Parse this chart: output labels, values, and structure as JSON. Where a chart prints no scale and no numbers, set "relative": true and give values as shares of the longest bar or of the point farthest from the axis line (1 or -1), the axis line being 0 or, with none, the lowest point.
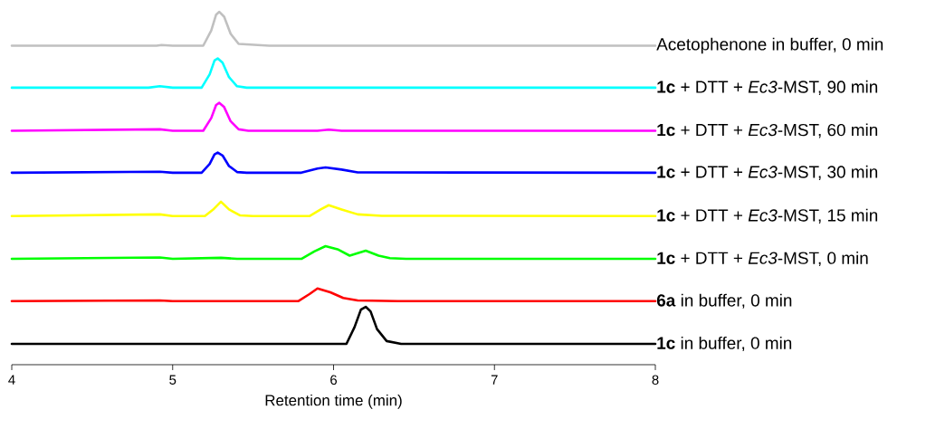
{
  "chart_data": {
    "type": "line",
    "relative": true,
    "xlabel": "Retention time (min)",
    "xlim": [
      4,
      8
    ],
    "xticks": [
      4,
      5,
      6,
      7,
      8
    ],
    "tick_labels": "x",
    "marker": "none",
    "line_style": "solid",
    "series": [
      {
        "name": "Acetophenone in buffer, 0 min",
        "color": "#c0c0c0",
        "x": [
          4.0,
          4.9,
          4.93,
          5.0,
          5.19,
          5.24,
          5.27,
          5.29,
          5.32,
          5.36,
          5.41,
          5.6,
          8.0
        ],
        "values": [
          0.904,
          0.904,
          0.906,
          0.904,
          0.904,
          0.947,
          0.992,
          1.0,
          0.986,
          0.938,
          0.909,
          0.904,
          0.904
        ]
      },
      {
        "name": "**1c** + DTT + *Ec3*-MST, 90 min",
        "color": "#00ffff",
        "x": [
          4.0,
          4.85,
          4.92,
          5.0,
          5.18,
          5.23,
          5.26,
          5.28,
          5.31,
          5.35,
          5.4,
          5.46,
          8.0
        ],
        "values": [
          0.785,
          0.785,
          0.789,
          0.785,
          0.785,
          0.823,
          0.862,
          0.868,
          0.856,
          0.815,
          0.789,
          0.785,
          0.785
        ]
      },
      {
        "name": "**1c** + DTT + *Ec3*-MST, 60 min",
        "color": "#ff00ff",
        "x": [
          4.0,
          4.92,
          5.0,
          5.19,
          5.24,
          5.27,
          5.29,
          5.32,
          5.36,
          5.41,
          5.47,
          5.9,
          5.97,
          6.05,
          8.0
        ],
        "values": [
          0.663,
          0.667,
          0.663,
          0.663,
          0.699,
          0.736,
          0.742,
          0.73,
          0.69,
          0.667,
          0.663,
          0.663,
          0.666,
          0.663,
          0.663
        ]
      },
      {
        "name": "**1c** + DTT + *Ec3*-MST, 30 min",
        "color": "#0000ff",
        "x": [
          4.0,
          4.92,
          5.0,
          5.18,
          5.23,
          5.26,
          5.28,
          5.31,
          5.35,
          5.4,
          5.46,
          5.8,
          5.9,
          5.95,
          6.05,
          6.15,
          8.0
        ],
        "values": [
          0.544,
          0.547,
          0.544,
          0.544,
          0.569,
          0.596,
          0.601,
          0.593,
          0.563,
          0.546,
          0.544,
          0.544,
          0.556,
          0.559,
          0.553,
          0.545,
          0.544
        ]
      },
      {
        "name": "**1c** + DTT + *Ec3*-MST, 15 min",
        "color": "#ffff00",
        "x": [
          4.0,
          4.92,
          5.0,
          5.2,
          5.25,
          5.3,
          5.35,
          5.42,
          5.5,
          5.85,
          5.92,
          5.97,
          6.05,
          6.15,
          6.3,
          8.0
        ],
        "values": [
          0.421,
          0.426,
          0.421,
          0.421,
          0.439,
          0.462,
          0.44,
          0.423,
          0.421,
          0.421,
          0.44,
          0.452,
          0.44,
          0.426,
          0.422,
          0.421
        ]
      },
      {
        "name": "**1c** + DTT + *Ec3*-MST, 0 min",
        "color": "#00ff00",
        "x": [
          4.0,
          4.92,
          5.0,
          5.3,
          5.4,
          5.8,
          5.88,
          5.95,
          6.03,
          6.1,
          6.2,
          6.28,
          6.35,
          6.45,
          8.0
        ],
        "values": [
          0.3,
          0.304,
          0.3,
          0.303,
          0.3,
          0.3,
          0.321,
          0.336,
          0.326,
          0.309,
          0.323,
          0.309,
          0.302,
          0.3,
          0.3
        ]
      },
      {
        "name": "**6a** in buffer, 0 min",
        "color": "#ff0000",
        "x": [
          4.0,
          4.92,
          5.0,
          5.78,
          5.85,
          5.9,
          5.98,
          6.06,
          6.15,
          6.4,
          8.0
        ],
        "values": [
          0.18,
          0.182,
          0.18,
          0.18,
          0.2,
          0.216,
          0.205,
          0.189,
          0.182,
          0.18,
          0.18
        ]
      },
      {
        "name": "**1c** in buffer, 0 min",
        "color": "#000000",
        "x": [
          4.0,
          6.08,
          6.13,
          6.17,
          6.2,
          6.23,
          6.27,
          6.33,
          6.42,
          8.0
        ],
        "values": [
          0.059,
          0.059,
          0.106,
          0.156,
          0.164,
          0.151,
          0.101,
          0.067,
          0.059,
          0.059
        ]
      }
    ]
  }
}
